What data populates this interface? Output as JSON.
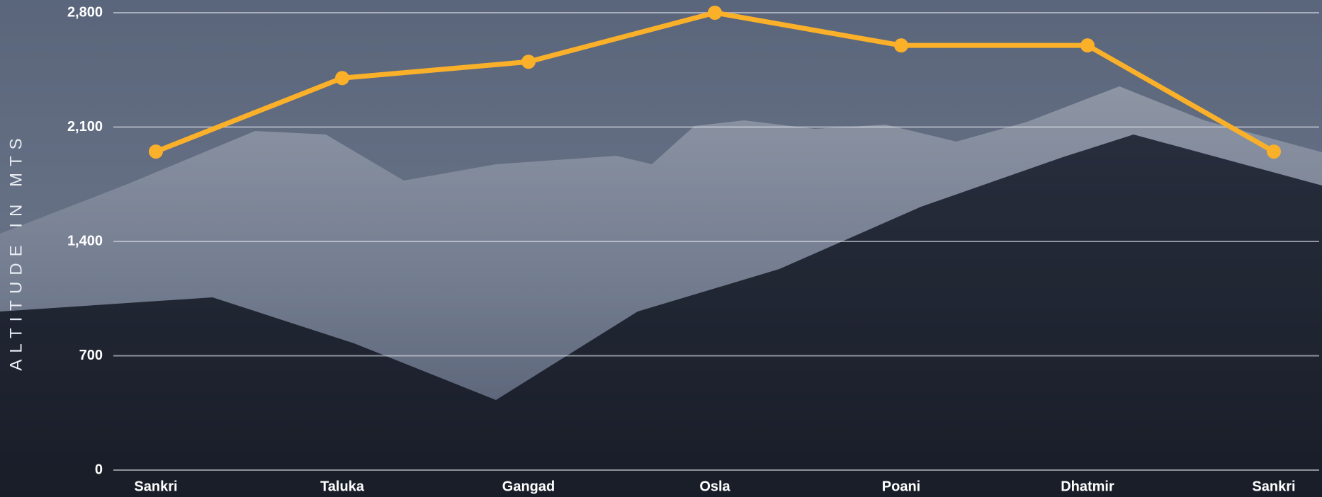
{
  "chart_data": {
    "type": "line",
    "ylabel": "ALTITUDE IN MTS",
    "categories": [
      "Sankri",
      "Taluka",
      "Gangad",
      "Osla",
      "Poani",
      "Dhatmir",
      "Sankri"
    ],
    "values": [
      1950,
      2400,
      2500,
      2800,
      2600,
      2600,
      1950
    ],
    "color": "#fbb02a",
    "ylim": [
      0,
      2800
    ],
    "yticks": [
      0,
      700,
      {
        "value": 1400,
        "label": "1,400"
      },
      {
        "value": 2100,
        "label": "2,100"
      },
      {
        "value": 2800,
        "label": "2,800"
      }
    ],
    "grid": true
  }
}
